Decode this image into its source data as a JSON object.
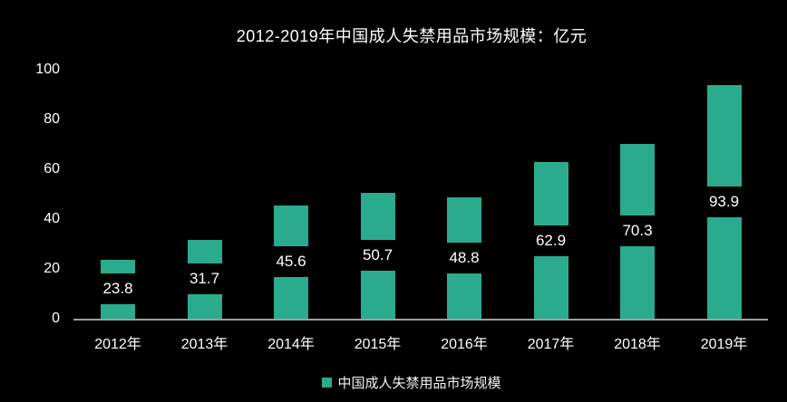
{
  "chart_data": {
    "type": "bar",
    "title": "2012-2019年中国成人失禁用品市场规模：亿元",
    "categories": [
      "2012年",
      "2013年",
      "2014年",
      "2015年",
      "2016年",
      "2017年",
      "2018年",
      "2019年"
    ],
    "values": [
      23.8,
      31.7,
      45.6,
      50.7,
      48.8,
      62.9,
      70.3,
      93.9
    ],
    "value_labels": [
      "23.8",
      "31.7",
      "45.6",
      "50.7",
      "48.8",
      "62.9",
      "70.3",
      "93.9"
    ],
    "y_ticks": [
      0,
      20,
      40,
      60,
      80,
      100
    ],
    "ylim": [
      0,
      100
    ],
    "xlabel": "",
    "ylabel": "",
    "grid": "off",
    "legend_position": "bottom-center",
    "legend": "中国成人失禁用品市场规模",
    "colors": {
      "background": "#000000",
      "bar": "#2bab8d",
      "axis_line": "#9e9e9e",
      "text": "#ffffff",
      "label_band": "#000000"
    }
  }
}
